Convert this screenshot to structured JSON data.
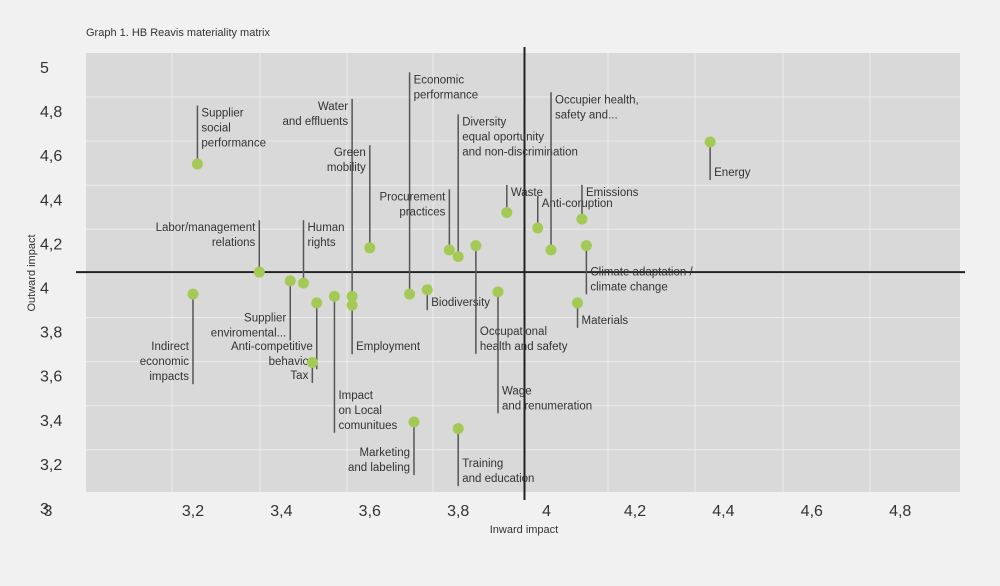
{
  "title": "Graph 1. HB Reavis materiality matrix",
  "chart_data": {
    "type": "scatter",
    "title": "Graph 1. HB Reavis materiality matrix",
    "xlabel": "Inward impact",
    "ylabel": "Outward impact",
    "xlim": [
      3.0,
      4.97
    ],
    "ylim": [
      3.0,
      5.0
    ],
    "xticks": [
      "3",
      "3,2",
      "3,4",
      "3,6",
      "3,8",
      "4",
      "4,2",
      "4,4",
      "4,6",
      "4,8"
    ],
    "xtick_values": [
      3.0,
      3.2,
      3.4,
      3.6,
      3.8,
      4.0,
      4.2,
      4.4,
      4.6,
      4.8
    ],
    "yticks": [
      "5",
      "4,8",
      "4,6",
      "4,4",
      "4,2",
      "4",
      "3,8",
      "3,6",
      "3,4",
      "3,2",
      "3"
    ],
    "ytick_values": [
      5.0,
      4.8,
      4.6,
      4.4,
      4.2,
      4.0,
      3.8,
      3.6,
      3.4,
      3.2,
      3.0
    ],
    "grid": true,
    "threshold_x": 3.95,
    "threshold_y": 4.07,
    "point_color": "#a4c955",
    "points": [
      {
        "label": [
          "Supplier",
          "social",
          "performance"
        ],
        "x": 3.21,
        "y": 4.56,
        "ly": 4.78,
        "side": "right"
      },
      {
        "label": [
          "Energy"
        ],
        "x": 4.37,
        "y": 4.66,
        "ly": 4.51,
        "side": "right"
      },
      {
        "label": [
          "Labor/management",
          "relations"
        ],
        "x": 3.35,
        "y": 4.07,
        "ly": 4.26,
        "side": "left"
      },
      {
        "label": [
          "Supplier",
          "enviromental..."
        ],
        "x": 3.42,
        "y": 4.03,
        "ly": 3.85,
        "side": "left"
      },
      {
        "label": [
          "Human",
          "rights"
        ],
        "x": 3.45,
        "y": 4.02,
        "ly": 4.26,
        "side": "right"
      },
      {
        "label": [
          "Indirect",
          "economic",
          "impacts"
        ],
        "x": 3.2,
        "y": 3.97,
        "ly": 3.72,
        "side": "left"
      },
      {
        "label": [
          "Anti-competitive",
          "behavior"
        ],
        "x": 3.48,
        "y": 3.93,
        "ly": 3.72,
        "side": "left"
      },
      {
        "label": [
          "Impact",
          "on Local",
          "comunitues"
        ],
        "x": 3.52,
        "y": 3.96,
        "ly": 3.5,
        "side": "right"
      },
      {
        "label": [
          "Tax"
        ],
        "x": 3.47,
        "y": 3.66,
        "ly": 3.59,
        "side": "left"
      },
      {
        "label": [
          "Water",
          "and effluents"
        ],
        "x": 3.56,
        "y": 3.96,
        "ly": 4.81,
        "side": "left"
      },
      {
        "label": [
          "Employment"
        ],
        "x": 3.56,
        "y": 3.92,
        "ly": 3.72,
        "side": "right"
      },
      {
        "label": [
          "Green",
          "mobility"
        ],
        "x": 3.6,
        "y": 4.18,
        "ly": 4.6,
        "side": "left"
      },
      {
        "label": [
          "Economic",
          "performance"
        ],
        "x": 3.69,
        "y": 3.97,
        "ly": 4.93,
        "side": "right"
      },
      {
        "label": [
          "Biodiversity"
        ],
        "x": 3.73,
        "y": 3.99,
        "ly": 3.92,
        "side": "right"
      },
      {
        "label": [
          "Procurement",
          "practices"
        ],
        "x": 3.78,
        "y": 4.17,
        "ly": 4.4,
        "side": "left"
      },
      {
        "label": [
          "Diversity",
          "equal oportunity",
          "and non-discrimination"
        ],
        "x": 3.8,
        "y": 4.14,
        "ly": 4.74,
        "side": "right"
      },
      {
        "label": [
          "Occupational",
          "health  and safety"
        ],
        "x": 3.84,
        "y": 4.19,
        "ly": 3.79,
        "side": "right"
      },
      {
        "label": [
          "Wage",
          "and renumeration"
        ],
        "x": 3.89,
        "y": 3.98,
        "ly": 3.52,
        "side": "right"
      },
      {
        "label": [
          "Waste"
        ],
        "x": 3.91,
        "y": 4.34,
        "ly": 4.42,
        "side": "right"
      },
      {
        "label": [
          "Anti-coruption"
        ],
        "x": 3.98,
        "y": 4.27,
        "ly": 4.37,
        "side": "right"
      },
      {
        "label": [
          "Occupier health,",
          "safety and..."
        ],
        "x": 4.01,
        "y": 4.17,
        "ly": 4.84,
        "side": "right"
      },
      {
        "label": [
          "Emissions"
        ],
        "x": 4.08,
        "y": 4.31,
        "ly": 4.42,
        "side": "right"
      },
      {
        "label": [
          "Climate adaptation /",
          "climate change"
        ],
        "x": 4.09,
        "y": 4.19,
        "ly": 4.06,
        "side": "right"
      },
      {
        "label": [
          "Materials"
        ],
        "x": 4.07,
        "y": 3.93,
        "ly": 3.84,
        "side": "right"
      },
      {
        "label": [
          "Marketing",
          "and labeling"
        ],
        "x": 3.7,
        "y": 3.39,
        "ly": 3.24,
        "side": "left"
      },
      {
        "label": [
          "Training",
          "and education"
        ],
        "x": 3.8,
        "y": 3.36,
        "ly": 3.19,
        "side": "right"
      }
    ]
  }
}
